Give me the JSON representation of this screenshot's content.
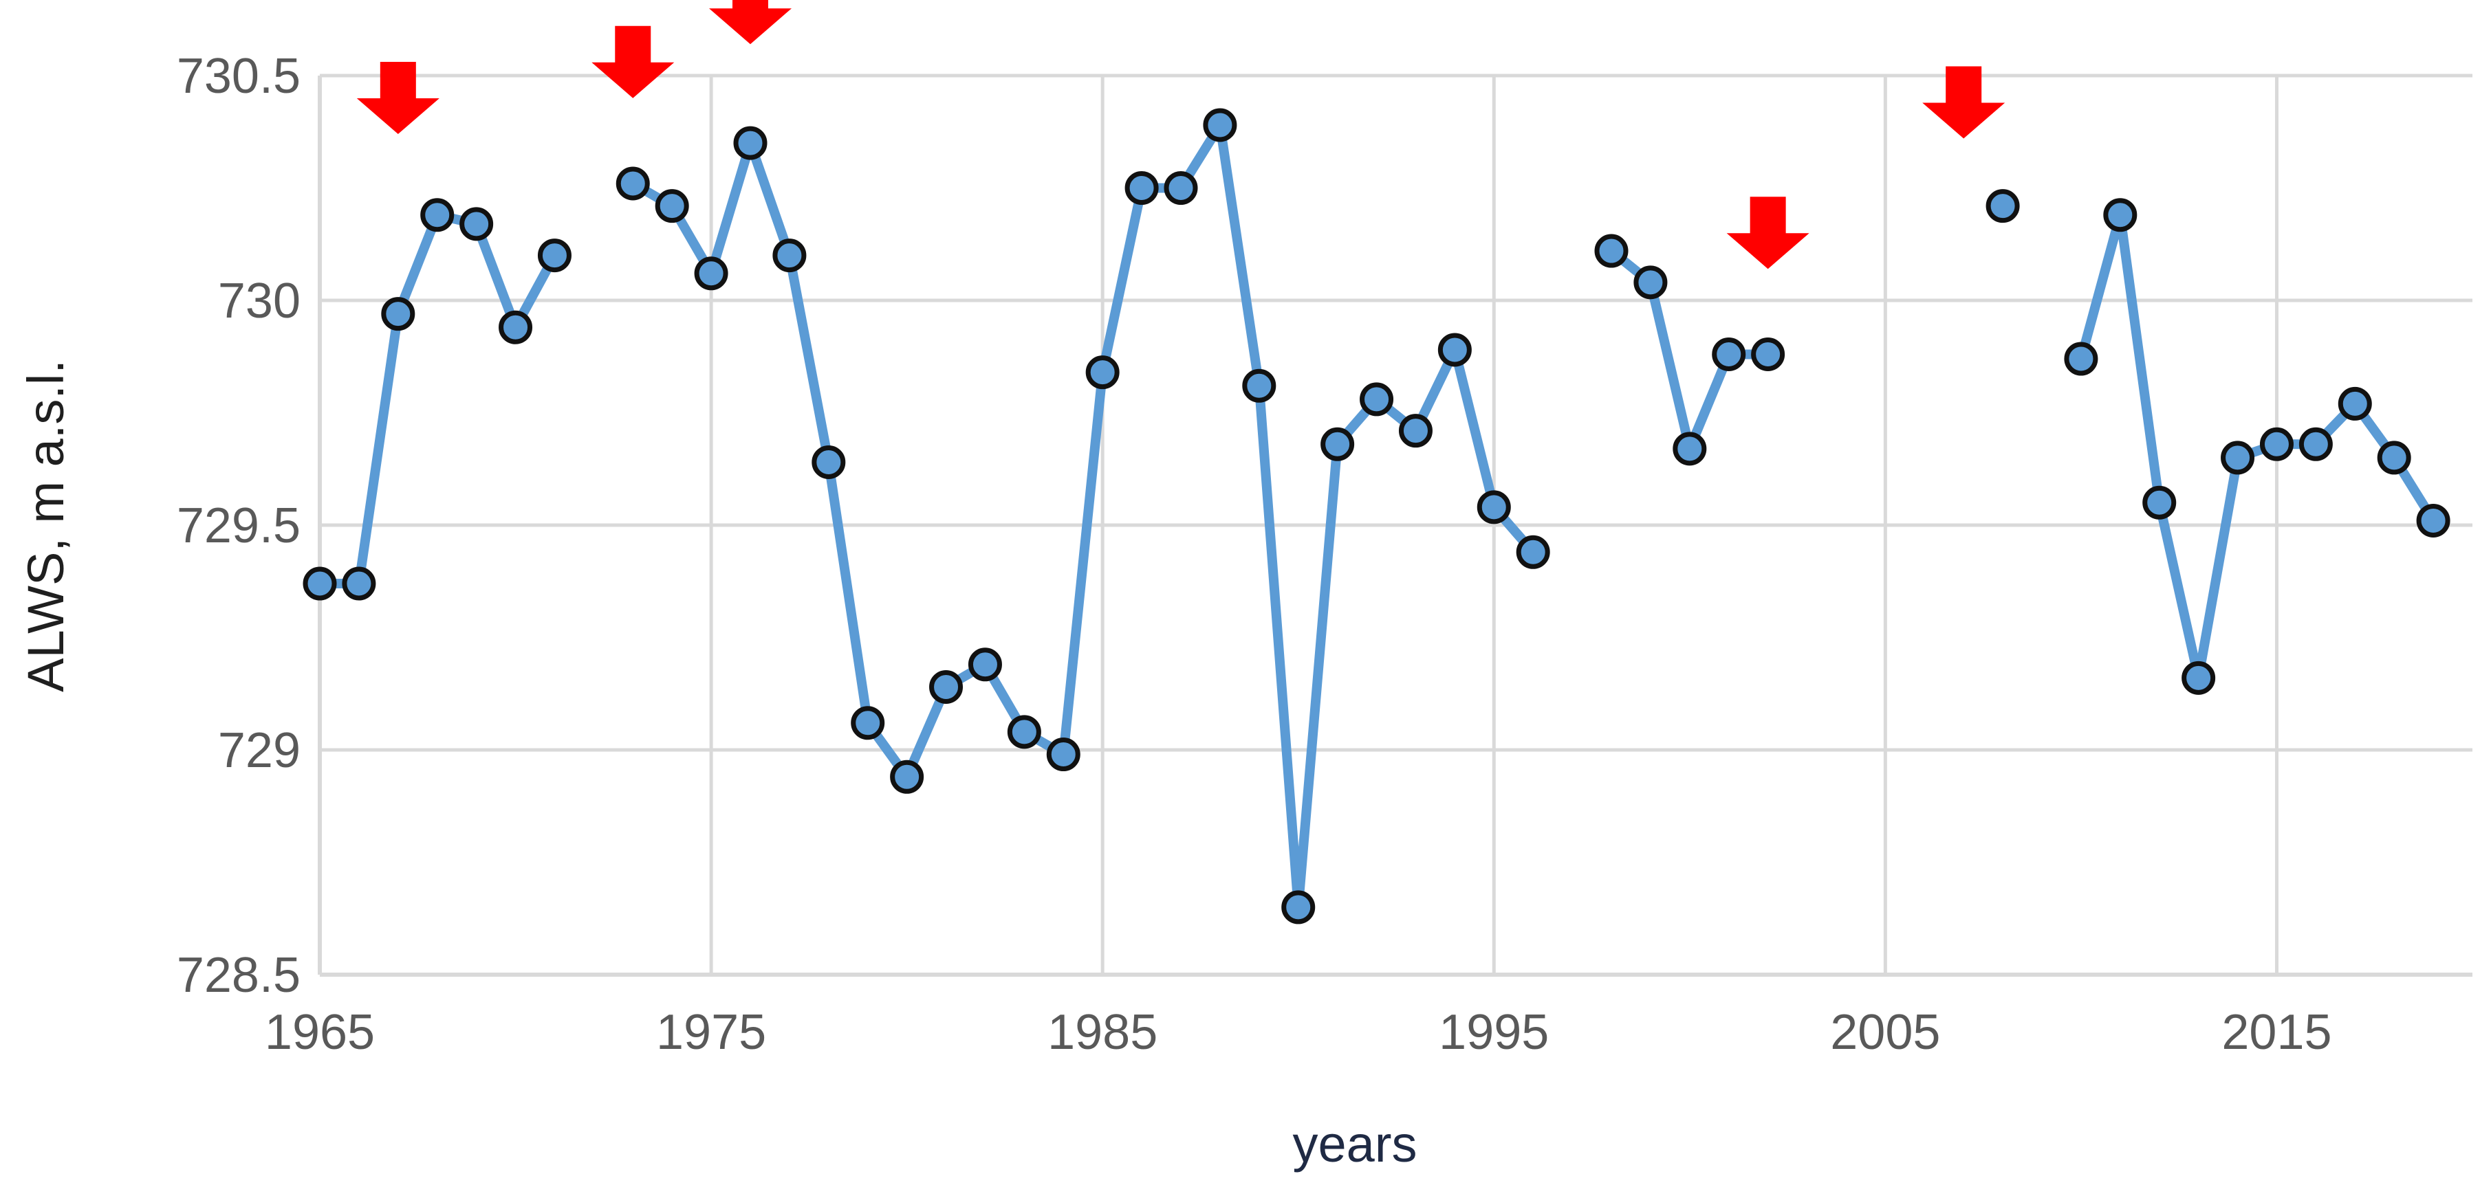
{
  "chart_data": {
    "type": "line",
    "xlabel": "years",
    "ylabel": "ALWS, m a.s.l.",
    "xlim": [
      1965,
      2020
    ],
    "ylim": [
      728.5,
      730.5
    ],
    "x_ticks": [
      1965,
      1975,
      1985,
      1995,
      2005,
      2015
    ],
    "y_ticks": [
      728.5,
      729,
      729.5,
      730,
      730.5
    ],
    "x_tick_labels": [
      "1965",
      "1975",
      "1985",
      "1995",
      "2005",
      "2015"
    ],
    "y_tick_labels": [
      "728.5",
      "729",
      "729.5",
      "730",
      "730.5"
    ],
    "grid": true,
    "colors": {
      "line": "#5b9bd5",
      "marker_fill": "#5b9bd5",
      "marker_edge": "#111111",
      "grid": "#d9d9d9",
      "arrow": "#ff0000"
    },
    "series": [
      {
        "x": [
          1965,
          1966,
          1967,
          1968,
          1969,
          1970,
          1971,
          1972,
          1973,
          1974,
          1975,
          1976,
          1977,
          1978,
          1979,
          1980,
          1981,
          1982,
          1983,
          1984,
          1985,
          1986,
          1987,
          1988,
          1989,
          1990,
          1991,
          1992,
          1993,
          1994,
          1995,
          1996,
          1997,
          1998,
          1999,
          2000,
          2001,
          2002,
          2003,
          2004,
          2005,
          2006,
          2007,
          2008,
          2009,
          2010,
          2011,
          2012,
          2013,
          2014,
          2015,
          2016,
          2017,
          2018,
          2019
        ],
        "y": [
          729.37,
          729.37,
          729.97,
          730.19,
          730.17,
          729.94,
          730.1,
          null,
          730.26,
          730.21,
          730.06,
          730.35,
          730.1,
          729.64,
          729.06,
          728.94,
          729.14,
          729.19,
          729.04,
          728.99,
          729.84,
          730.25,
          730.25,
          730.39,
          729.81,
          728.65,
          729.68,
          729.78,
          729.71,
          729.89,
          729.54,
          729.44,
          null,
          730.11,
          730.04,
          729.67,
          729.88,
          729.88,
          null,
          null,
          null,
          null,
          null,
          730.21,
          null,
          729.87,
          730.19,
          729.55,
          729.16,
          729.65,
          729.68,
          729.68,
          729.77,
          729.65,
          729.51
        ]
      }
    ],
    "arrow_years": [
      1967,
      1973,
      1976,
      2002,
      2007
    ],
    "arrow_values": [
      730.37,
      730.45,
      730.57,
      730.07,
      730.36
    ]
  }
}
